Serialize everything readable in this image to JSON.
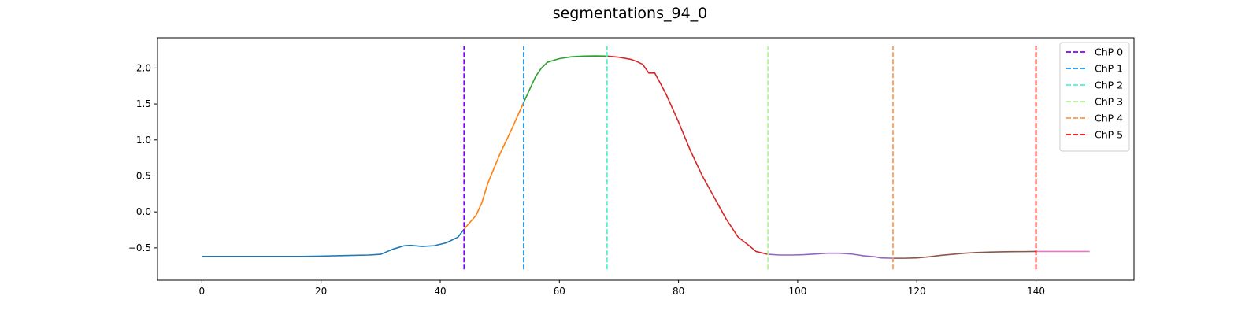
{
  "chart_data": {
    "type": "line",
    "title": "segmentations_94_0",
    "xlabel": "",
    "ylabel": "",
    "xlim": [
      -7.45,
      156.45
    ],
    "ylim": [
      -0.95,
      2.42
    ],
    "x_ticks": [
      0,
      20,
      40,
      60,
      80,
      100,
      120,
      140
    ],
    "y_ticks": [
      -0.5,
      0.0,
      0.5,
      1.0,
      1.5,
      2.0
    ],
    "y_tick_labels": [
      "−0.5",
      "0.0",
      "0.5",
      "1.0",
      "1.5",
      "2.0"
    ],
    "grid": false,
    "legend_position": "top-right",
    "segments": [
      {
        "color": "#1f77b4",
        "points": [
          [
            0,
            -0.62
          ],
          [
            4,
            -0.62
          ],
          [
            8,
            -0.62
          ],
          [
            12,
            -0.62
          ],
          [
            16,
            -0.62
          ],
          [
            20,
            -0.615
          ],
          [
            24,
            -0.607
          ],
          [
            28,
            -0.6
          ],
          [
            30,
            -0.59
          ],
          [
            32,
            -0.52
          ],
          [
            34,
            -0.47
          ],
          [
            35,
            -0.465
          ],
          [
            37,
            -0.48
          ],
          [
            39,
            -0.47
          ],
          [
            41,
            -0.43
          ],
          [
            43,
            -0.35
          ],
          [
            44,
            -0.24
          ]
        ]
      },
      {
        "color": "#ff7f0e",
        "points": [
          [
            44,
            -0.24
          ],
          [
            46,
            -0.05
          ],
          [
            47,
            0.13
          ],
          [
            48,
            0.4
          ],
          [
            50,
            0.8
          ],
          [
            52,
            1.15
          ],
          [
            54,
            1.52
          ]
        ]
      },
      {
        "color": "#2ca02c",
        "points": [
          [
            54,
            1.52
          ],
          [
            55,
            1.7
          ],
          [
            56,
            1.88
          ],
          [
            57,
            2.0
          ],
          [
            58,
            2.08
          ],
          [
            60,
            2.13
          ],
          [
            62,
            2.155
          ],
          [
            64,
            2.165
          ],
          [
            66,
            2.168
          ],
          [
            68,
            2.165
          ]
        ]
      },
      {
        "color": "#d62728",
        "points": [
          [
            68,
            2.165
          ],
          [
            70,
            2.15
          ],
          [
            72,
            2.12
          ],
          [
            73,
            2.09
          ],
          [
            74,
            2.05
          ],
          [
            75,
            1.93
          ],
          [
            76,
            1.93
          ],
          [
            77,
            1.78
          ],
          [
            78,
            1.62
          ],
          [
            80,
            1.25
          ],
          [
            82,
            0.85
          ],
          [
            84,
            0.5
          ],
          [
            86,
            0.2
          ],
          [
            88,
            -0.1
          ],
          [
            90,
            -0.35
          ],
          [
            92,
            -0.48
          ],
          [
            93,
            -0.55
          ],
          [
            95,
            -0.59
          ]
        ]
      },
      {
        "color": "#9467bd",
        "points": [
          [
            95,
            -0.59
          ],
          [
            97,
            -0.6
          ],
          [
            99,
            -0.6
          ],
          [
            101,
            -0.595
          ],
          [
            103,
            -0.585
          ],
          [
            105,
            -0.575
          ],
          [
            107,
            -0.575
          ],
          [
            109,
            -0.585
          ],
          [
            111,
            -0.61
          ],
          [
            113,
            -0.625
          ],
          [
            114,
            -0.64
          ],
          [
            116,
            -0.645
          ]
        ]
      },
      {
        "color": "#8c564b",
        "points": [
          [
            116,
            -0.645
          ],
          [
            118,
            -0.645
          ],
          [
            120,
            -0.64
          ],
          [
            122,
            -0.625
          ],
          [
            124,
            -0.605
          ],
          [
            126,
            -0.59
          ],
          [
            128,
            -0.575
          ],
          [
            130,
            -0.565
          ],
          [
            132,
            -0.56
          ],
          [
            134,
            -0.555
          ],
          [
            136,
            -0.553
          ],
          [
            138,
            -0.552
          ],
          [
            140,
            -0.55
          ]
        ]
      },
      {
        "color": "#e377c2",
        "points": [
          [
            140,
            -0.55
          ],
          [
            143,
            -0.55
          ],
          [
            146,
            -0.55
          ],
          [
            149,
            -0.55
          ]
        ]
      }
    ],
    "change_points": [
      {
        "label": "ChP 0",
        "x": 44,
        "color": "#8000ff"
      },
      {
        "label": "ChP 1",
        "x": 54,
        "color": "#1996f3"
      },
      {
        "label": "ChP 2",
        "x": 68,
        "color": "#4cf2ce"
      },
      {
        "label": "ChP 3",
        "x": 95,
        "color": "#b2f396"
      },
      {
        "label": "ChP 4",
        "x": 116,
        "color": "#ff964f"
      },
      {
        "label": "ChP 5",
        "x": 140,
        "color": "#ff0000"
      }
    ],
    "change_point_range": [
      -0.8,
      2.3
    ]
  }
}
